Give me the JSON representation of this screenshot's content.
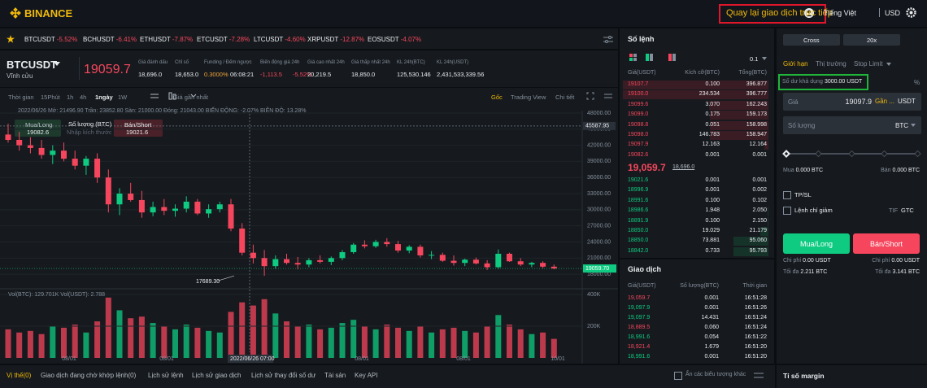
{
  "header": {
    "logo": "BINANCE",
    "back_button": "Quay lại giao dịch trực tiếp",
    "language": "Tiếng Việt",
    "currency": "USD"
  },
  "ticker": [
    {
      "symbol": "BTCUSDT",
      "change": "-5.52%"
    },
    {
      "symbol": "BCHUSDT",
      "change": "-6.41%"
    },
    {
      "symbol": "ETHUSDT",
      "change": "-7.87%"
    },
    {
      "symbol": "ETCUSDT",
      "change": "-7.28%"
    },
    {
      "symbol": "LTCUSDT",
      "change": "-4.60%"
    },
    {
      "symbol": "XRPUSDT",
      "change": "-12.87%"
    },
    {
      "symbol": "EOSUSDT",
      "change": "-4.07%"
    }
  ],
  "market": {
    "symbol": "BTCUSDT",
    "contract": "Vĩnh cửu",
    "price": "19059.7",
    "stats": [
      {
        "label": "Giá đánh dấu",
        "value": "18,696.0"
      },
      {
        "label": "Chỉ số",
        "value": "18,653.0"
      },
      {
        "label": "Funding / Đếm ngược",
        "value": "0.3000%",
        "value2": "06:08:21"
      },
      {
        "label": "Biến động giá 24h",
        "value": "-1,113.5",
        "value2": "-5.52%"
      },
      {
        "label": "Giá cao nhất 24h",
        "value": "20,219.5"
      },
      {
        "label": "Giá thấp nhất 24h",
        "value": "18,850.0"
      },
      {
        "label": "KL 24h(BTC)",
        "value": "125,530.146"
      },
      {
        "label": "KL 24h(USDT)",
        "value": "2,431,533,339.56"
      }
    ]
  },
  "chart_toolbar": {
    "intervals": [
      "Thời gian",
      "15Phút",
      "1h",
      "4h",
      "1ngày",
      "1W"
    ],
    "price_type": "Giá gần nhất",
    "views": [
      "Gốc",
      "Trading View",
      "Chi tiết"
    ]
  },
  "order_widget": {
    "buy": "Mua/Long",
    "buy_price": "19082.6",
    "qty_label": "Số lượng (BTC)",
    "qty_placeholder": "Nhập kích thước",
    "sell": "Bán/Short",
    "sell_price": "19021.6"
  },
  "chart_data": {
    "type": "candlestick",
    "info": "2022/06/26 Mở: 21496.90 Trần: 23852.80 Sàn: 21000.00 Đóng: 21043.00 BIẾN ĐỘNG: -2.07% BIÊN ĐỘ: 13.28%",
    "candles": [
      {
        "open": 44000,
        "high": 46000,
        "low": 42500,
        "close": 43000
      },
      {
        "open": 43000,
        "high": 44500,
        "low": 41000,
        "close": 42000
      },
      {
        "open": 42000,
        "high": 43500,
        "low": 40500,
        "close": 41500
      },
      {
        "open": 41500,
        "high": 43000,
        "low": 39500,
        "close": 40200
      },
      {
        "open": 40200,
        "high": 42000,
        "low": 38500,
        "close": 41000
      },
      {
        "open": 41000,
        "high": 42500,
        "low": 39000,
        "close": 39500
      },
      {
        "open": 39500,
        "high": 41000,
        "low": 37500,
        "close": 38200
      },
      {
        "open": 38200,
        "high": 40000,
        "low": 36500,
        "close": 39500
      },
      {
        "open": 39500,
        "high": 40500,
        "low": 35000,
        "close": 36000
      },
      {
        "open": 36000,
        "high": 37500,
        "low": 29500,
        "close": 31000
      },
      {
        "open": 31000,
        "high": 34000,
        "low": 29000,
        "close": 33000
      },
      {
        "open": 33000,
        "high": 35000,
        "low": 31500,
        "close": 31800
      },
      {
        "open": 31800,
        "high": 33500,
        "low": 28500,
        "close": 29500
      },
      {
        "open": 29500,
        "high": 31500,
        "low": 28800,
        "close": 30500
      },
      {
        "open": 30500,
        "high": 32000,
        "low": 29000,
        "close": 29800
      },
      {
        "open": 29800,
        "high": 31000,
        "low": 28700,
        "close": 30200
      },
      {
        "open": 30200,
        "high": 32500,
        "low": 29500,
        "close": 31500
      },
      {
        "open": 31500,
        "high": 32000,
        "low": 29000,
        "close": 29300
      },
      {
        "open": 29300,
        "high": 31000,
        "low": 28500,
        "close": 30100
      },
      {
        "open": 30100,
        "high": 31500,
        "low": 29500,
        "close": 31000
      },
      {
        "open": 31000,
        "high": 32000,
        "low": 26000,
        "close": 26500
      },
      {
        "open": 26500,
        "high": 27500,
        "low": 21500,
        "close": 22000
      },
      {
        "open": 22000,
        "high": 23500,
        "low": 20000,
        "close": 21000
      },
      {
        "open": 21000,
        "high": 22500,
        "low": 17689.3,
        "close": 19500
      },
      {
        "open": 19500,
        "high": 21500,
        "low": 19000,
        "close": 20800
      },
      {
        "open": 20800,
        "high": 21800,
        "low": 19800,
        "close": 20100
      },
      {
        "open": 20100,
        "high": 21200,
        "low": 18900,
        "close": 19800
      },
      {
        "open": 19800,
        "high": 21000,
        "low": 19300,
        "close": 20600
      },
      {
        "open": 20600,
        "high": 21500,
        "low": 20000,
        "close": 20300
      },
      {
        "open": 20300,
        "high": 21300,
        "low": 19700,
        "close": 21000
      },
      {
        "open": 21000,
        "high": 22500,
        "low": 20600,
        "close": 22100
      },
      {
        "open": 22100,
        "high": 23800,
        "low": 21800,
        "close": 23500
      },
      {
        "open": 23500,
        "high": 24300,
        "low": 22800,
        "close": 23200
      },
      {
        "open": 23200,
        "high": 24400,
        "low": 22900,
        "close": 24000
      },
      {
        "open": 24000,
        "high": 24700,
        "low": 23100,
        "close": 23600
      },
      {
        "open": 23600,
        "high": 24200,
        "low": 22000,
        "close": 22400
      },
      {
        "open": 22400,
        "high": 23400,
        "low": 21900,
        "close": 23100
      },
      {
        "open": 23100,
        "high": 23500,
        "low": 21100,
        "close": 21500
      },
      {
        "open": 21500,
        "high": 22300,
        "low": 20800,
        "close": 21600
      },
      {
        "open": 21600,
        "high": 22000,
        "low": 20300,
        "close": 20500
      },
      {
        "open": 20500,
        "high": 21500,
        "low": 19600,
        "close": 20100
      },
      {
        "open": 20100,
        "high": 20900,
        "low": 19500,
        "close": 20700
      },
      {
        "open": 20700,
        "high": 21100,
        "low": 19800,
        "close": 20000
      },
      {
        "open": 20000,
        "high": 20600,
        "low": 18800,
        "close": 19300
      },
      {
        "open": 19300,
        "high": 22600,
        "low": 19000,
        "close": 21800
      },
      {
        "open": 21800,
        "high": 22000,
        "low": 20300,
        "close": 20400
      },
      {
        "open": 20400,
        "high": 21000,
        "low": 19500,
        "close": 19800
      },
      {
        "open": 19800,
        "high": 20300,
        "low": 19300,
        "close": 20100
      },
      {
        "open": 20100,
        "high": 20400,
        "low": 19100,
        "close": 19400
      },
      {
        "open": 19400,
        "high": 19800,
        "low": 18900,
        "close": 19059.7
      }
    ],
    "ylim": [
      16800,
      48450
    ],
    "yticks": [
      {
        "value": 48000,
        "label": "48000.00"
      },
      {
        "value": 45000,
        "label": "45000.00"
      },
      {
        "value": 42000,
        "label": "42000.00"
      },
      {
        "value": 39000,
        "label": "39000.00"
      },
      {
        "value": 36000,
        "label": "36000.00"
      },
      {
        "value": 33000,
        "label": "33000.00"
      },
      {
        "value": 30000,
        "label": "30000.00"
      },
      {
        "value": 27000,
        "label": "27000.00"
      },
      {
        "value": 24000,
        "label": "24000.00"
      },
      {
        "value": 21000,
        "label": "21000.00"
      },
      {
        "value": 18000,
        "label": "18000.00"
      }
    ],
    "crosshair_price": {
      "value": 45587.95,
      "label": "45587.95"
    },
    "last_price": {
      "value": 19059.7,
      "label": "19059.70"
    },
    "low_label": {
      "value": 17689.3,
      "label": "17689.30"
    },
    "volume_title": "Vol(BTC): 129.701K Vol(USDT): 2.788",
    "volumes": [
      180000,
      160000,
      170000,
      150000,
      200000,
      190000,
      210000,
      160000,
      230000,
      380000,
      300000,
      250000,
      260000,
      220000,
      200000,
      180000,
      210000,
      190000,
      170000,
      160000,
      290000,
      350000,
      330000,
      370000,
      280000,
      230000,
      200000,
      210000,
      180000,
      190000,
      220000,
      240000,
      200000,
      180000,
      210000,
      190000,
      170000,
      200000,
      160000,
      180000,
      190000,
      170000,
      160000,
      200000,
      270000,
      210000,
      180000,
      150000,
      160000,
      120000
    ],
    "volume_ylim": [
      0,
      410000
    ],
    "volume_yticks": [
      {
        "value": 400000,
        "label": "400K"
      },
      {
        "value": 200000,
        "label": "200K"
      }
    ],
    "x_labels": [
      "08/01",
      "08/01",
      "08/01",
      "08/01",
      "08/01",
      "10/01"
    ],
    "crosshair_label": "2022/06/26 07:00"
  },
  "orderbook": {
    "title": "Số lệnh",
    "step": "0.1",
    "headers": [
      "Giá(USDT)",
      "Kích cỡ(BTC)",
      "Tổng(BTC)"
    ],
    "asks": [
      [
        "19107.7",
        "0.100",
        "396.877"
      ],
      [
        "19100.0",
        "234.534",
        "396.777"
      ],
      [
        "19099.6",
        "3.070",
        "162.243"
      ],
      [
        "19099.0",
        "0.175",
        "159.173"
      ],
      [
        "19098.8",
        "0.051",
        "158.998"
      ],
      [
        "19098.0",
        "146.783",
        "158.947"
      ],
      [
        "19097.9",
        "12.163",
        "12.164"
      ],
      [
        "19082.6",
        "0.001",
        "0.001"
      ]
    ],
    "last_price": "19,059.7",
    "mark_price": "18,696.0",
    "bids": [
      [
        "19021.6",
        "0.001",
        "0.001"
      ],
      [
        "18996.9",
        "0.001",
        "0.002"
      ],
      [
        "18991.6",
        "0.100",
        "0.102"
      ],
      [
        "18986.6",
        "1.948",
        "2.050"
      ],
      [
        "18891.9",
        "0.100",
        "2.150"
      ],
      [
        "18850.0",
        "19.029",
        "21.179"
      ],
      [
        "18850.0",
        "73.881",
        "95.060"
      ],
      [
        "18842.0",
        "0.733",
        "95.793"
      ]
    ]
  },
  "trades": {
    "title": "Giao dịch",
    "headers": [
      "Giá(USDT)",
      "Số lượng(BTC)",
      "Thời gian"
    ],
    "rows": [
      {
        "price": "19,059.7",
        "qty": "0.001",
        "time": "16:51:28",
        "side": "sell"
      },
      {
        "price": "19,097.9",
        "qty": "0.001",
        "time": "16:51:26",
        "side": "buy"
      },
      {
        "price": "19,097.9",
        "qty": "14.431",
        "time": "16:51:24",
        "side": "buy"
      },
      {
        "price": "18,889.5",
        "qty": "0.060",
        "time": "16:51:24",
        "side": "sell"
      },
      {
        "price": "18,991.6",
        "qty": "0.054",
        "time": "16:51:22",
        "side": "buy"
      },
      {
        "price": "18,921.4",
        "qty": "1.679",
        "time": "16:51:20",
        "side": "sell"
      },
      {
        "price": "18,991.6",
        "qty": "0.001",
        "time": "16:51:20",
        "side": "buy"
      }
    ]
  },
  "order_form": {
    "margin_mode": "Cross",
    "leverage": "20x",
    "tabs": [
      "Giới hạn",
      "Thị trường",
      "Stop Limit"
    ],
    "percent_icon": "%",
    "balance_label": "Số dư khả dụng",
    "balance": "3000.00 USDT",
    "price_label": "Giá",
    "price": "19097.9",
    "price_hint": "Gần ...",
    "price_unit": "USDT",
    "qty_label": "Số lượng",
    "qty_unit": "BTC",
    "buy_label": "Mua",
    "buy_amount": "0.000 BTC",
    "sell_label": "Bán",
    "sell_amount": "0.000 BTC",
    "tpsl": "TP/SL",
    "reduce_only": "Lệnh chỉ giảm",
    "tif_label": "TIF",
    "tif": "GTC",
    "buy_button": "Mua/Long",
    "sell_button": "Bán/Short",
    "cost_label": "Chi phí",
    "buy_cost": "0.00 USDT",
    "sell_cost": "0.00 USDT",
    "max_label": "Tối đa",
    "buy_max": "2.211 BTC",
    "sell_max": "3.141 BTC",
    "margin_ratio": "Tỉ số margin"
  },
  "bottom_bar": {
    "tabs": [
      "Vị thế(0)",
      "Giao dịch đang chờ khớp lệnh(0)",
      "Lịch sử lệnh",
      "Lịch sử giao dịch",
      "Lịch sử thay đổi số dư",
      "Tài sản",
      "Key API"
    ],
    "hide_others": "Ẩn các biểu tượng khác"
  }
}
